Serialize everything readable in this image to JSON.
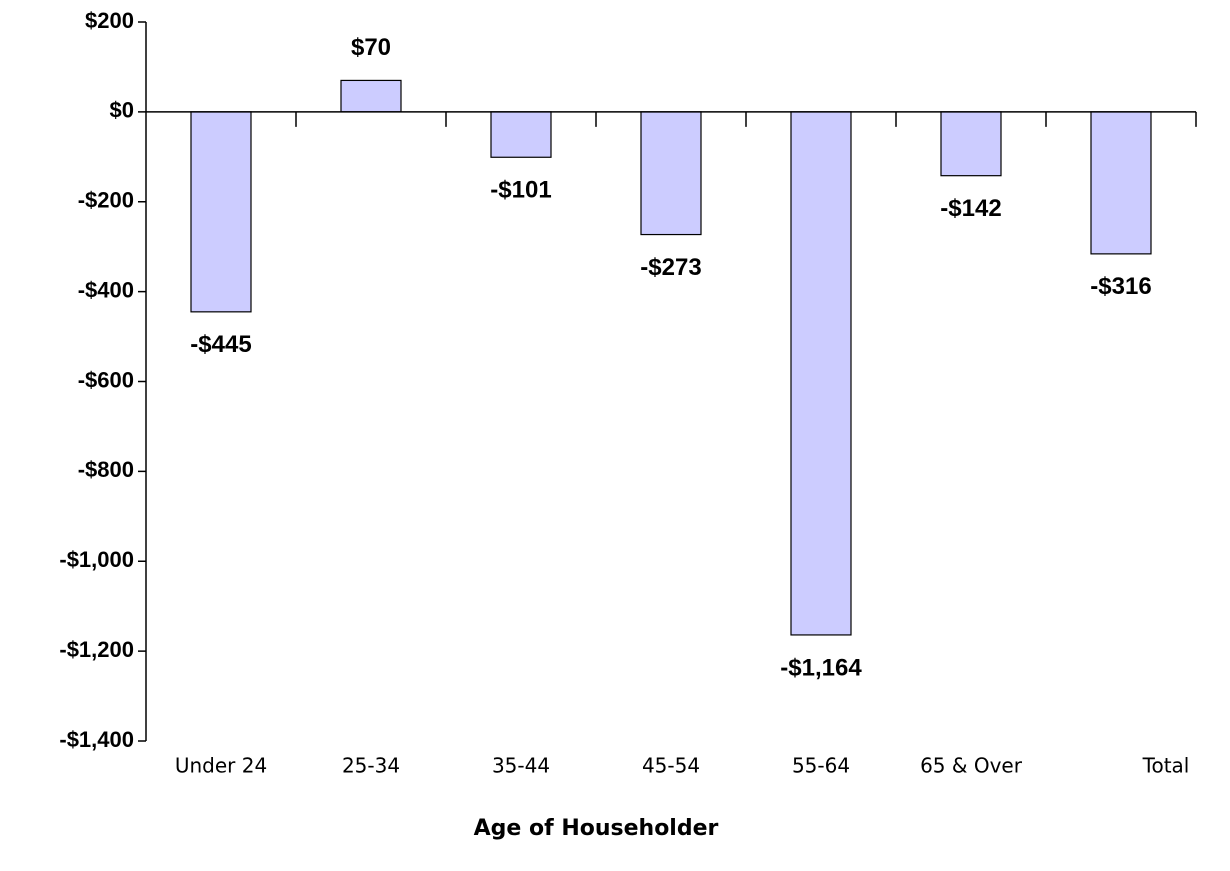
{
  "chart_data": {
    "type": "bar",
    "x_label": "Age of Householder",
    "categories": [
      "Under 24",
      "25-34",
      "35-44",
      "45-54",
      "55-64",
      "65 & Over",
      "Total"
    ],
    "values": [
      -445,
      70,
      -101,
      -273,
      -1164,
      -142,
      -316
    ],
    "value_labels": [
      "-$445",
      "$70",
      "-$101",
      "-$273",
      "-$1,164",
      "-$142",
      "-$316"
    ],
    "color": "#ccccff",
    "ylim": [
      -1400,
      200
    ],
    "yticks": [
      {
        "value": -1400,
        "label": "-$1,400"
      },
      {
        "value": -1200,
        "label": "-$1,200"
      },
      {
        "value": -1000,
        "label": "-$1,000"
      },
      {
        "value": -800,
        "label": "-$800"
      },
      {
        "value": -600,
        "label": "-$600"
      },
      {
        "value": -400,
        "label": "-$400"
      },
      {
        "value": -200,
        "label": "-$200"
      },
      {
        "value": 0,
        "label": "$0"
      },
      {
        "value": 200,
        "label": "$200"
      }
    ],
    "grid": false
  }
}
